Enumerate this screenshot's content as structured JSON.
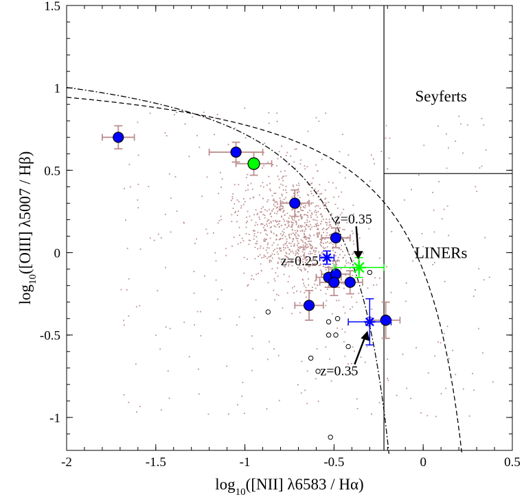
{
  "chart_data": {
    "type": "scatter",
    "xlabel": "log10([NII] λ6583 / Hα)",
    "ylabel": "log10([OIII] λ5007 / Hβ)",
    "xlim": [
      -2,
      0.5
    ],
    "ylim": [
      -1.2,
      1.5
    ],
    "x_ticks": [
      -2,
      -1.5,
      -1,
      -0.5,
      0,
      0.5
    ],
    "x_tick_labels": [
      "-2",
      "-1.5",
      "-1",
      "-0.5",
      "0",
      "0.5"
    ],
    "y_ticks": [
      -1,
      -0.5,
      0,
      0.5,
      1,
      1.5
    ],
    "y_tick_labels": [
      "-1",
      "-0.5",
      "0",
      "0.5",
      "1",
      "1.5"
    ],
    "grid": false,
    "region_labels": [
      {
        "text": "Seyferts",
        "x": 0.1,
        "y": 0.95
      },
      {
        "text": "LINERs",
        "x": 0.1,
        "y": 0.0
      }
    ],
    "series": [
      {
        "marker": "filled-circle",
        "color": "#0000ff",
        "error_color": "#bc8f8f",
        "points": [
          {
            "x": -1.71,
            "y": 0.7,
            "xerr": 0.09,
            "yerr": 0.07
          },
          {
            "x": -1.05,
            "y": 0.61,
            "xerr": 0.15,
            "yerr": 0.06
          },
          {
            "x": -0.72,
            "y": 0.3,
            "xerr": 0.08,
            "yerr": 0.08
          },
          {
            "x": -0.49,
            "y": 0.09,
            "xerr": 0.08,
            "yerr": 0.06
          },
          {
            "x": -0.53,
            "y": -0.15,
            "xerr": 0.07,
            "yerr": 0.06
          },
          {
            "x": -0.49,
            "y": -0.13,
            "xerr": 0.08,
            "yerr": 0.08
          },
          {
            "x": -0.5,
            "y": -0.18,
            "xerr": 0.08,
            "yerr": 0.08
          },
          {
            "x": -0.41,
            "y": -0.18,
            "xerr": 0.07,
            "yerr": 0.07
          },
          {
            "x": -0.64,
            "y": -0.32,
            "xerr": 0.08,
            "yerr": 0.09
          },
          {
            "x": -0.21,
            "y": -0.41,
            "xerr": 0.08,
            "yerr": 0.11
          }
        ]
      },
      {
        "marker": "filled-circle",
        "color": "#00ff00",
        "error_color": "#bc8f8f",
        "points": [
          {
            "x": -0.95,
            "y": 0.54,
            "xerr": 0.1,
            "yerr": 0.07
          }
        ]
      },
      {
        "marker": "open-circle",
        "color": "#000000",
        "points": [
          {
            "x": -0.87,
            "y": -0.36
          },
          {
            "x": -0.3,
            "y": -0.12
          },
          {
            "x": -0.53,
            "y": -0.42
          },
          {
            "x": -0.48,
            "y": -0.4
          },
          {
            "x": -0.53,
            "y": -0.5
          },
          {
            "x": -0.49,
            "y": -0.5
          },
          {
            "x": -0.42,
            "y": -0.57
          },
          {
            "x": -0.31,
            "y": -0.43
          },
          {
            "x": -0.63,
            "y": -0.64
          },
          {
            "x": -0.59,
            "y": -0.72
          },
          {
            "x": -0.52,
            "y": -1.12
          }
        ]
      }
    ],
    "stacked_points": [
      {
        "label": "z=0.25",
        "x": -0.54,
        "y": -0.03,
        "color": "#0000ff",
        "xerr": 0.04,
        "yerr": 0.04
      },
      {
        "label": "z=0.35",
        "x": -0.36,
        "y": -0.09,
        "color": "#00ff00",
        "xerr": 0.14,
        "yerr": 0.06
      },
      {
        "label": "z=0.35",
        "x": -0.3,
        "y": -0.42,
        "color": "#0000ff",
        "xerr": 0.12,
        "yerr": 0.14
      }
    ],
    "reference_lines": [
      {
        "style": "solid",
        "type": "vertical",
        "x": -0.22
      },
      {
        "style": "solid",
        "type": "horizontal",
        "y": 0.48,
        "x_from": -0.22,
        "x_to": 0.5
      },
      {
        "style": "dashed",
        "type": "curve",
        "formula": "0.61/(x-0.47)+1.19"
      },
      {
        "style": "dash-dot",
        "type": "curve",
        "formula": "0.61/(x-0.05)+1.3"
      }
    ],
    "background_points": {
      "color": "#bc8f8f",
      "count": 1200,
      "description": "scattered small dots"
    }
  }
}
